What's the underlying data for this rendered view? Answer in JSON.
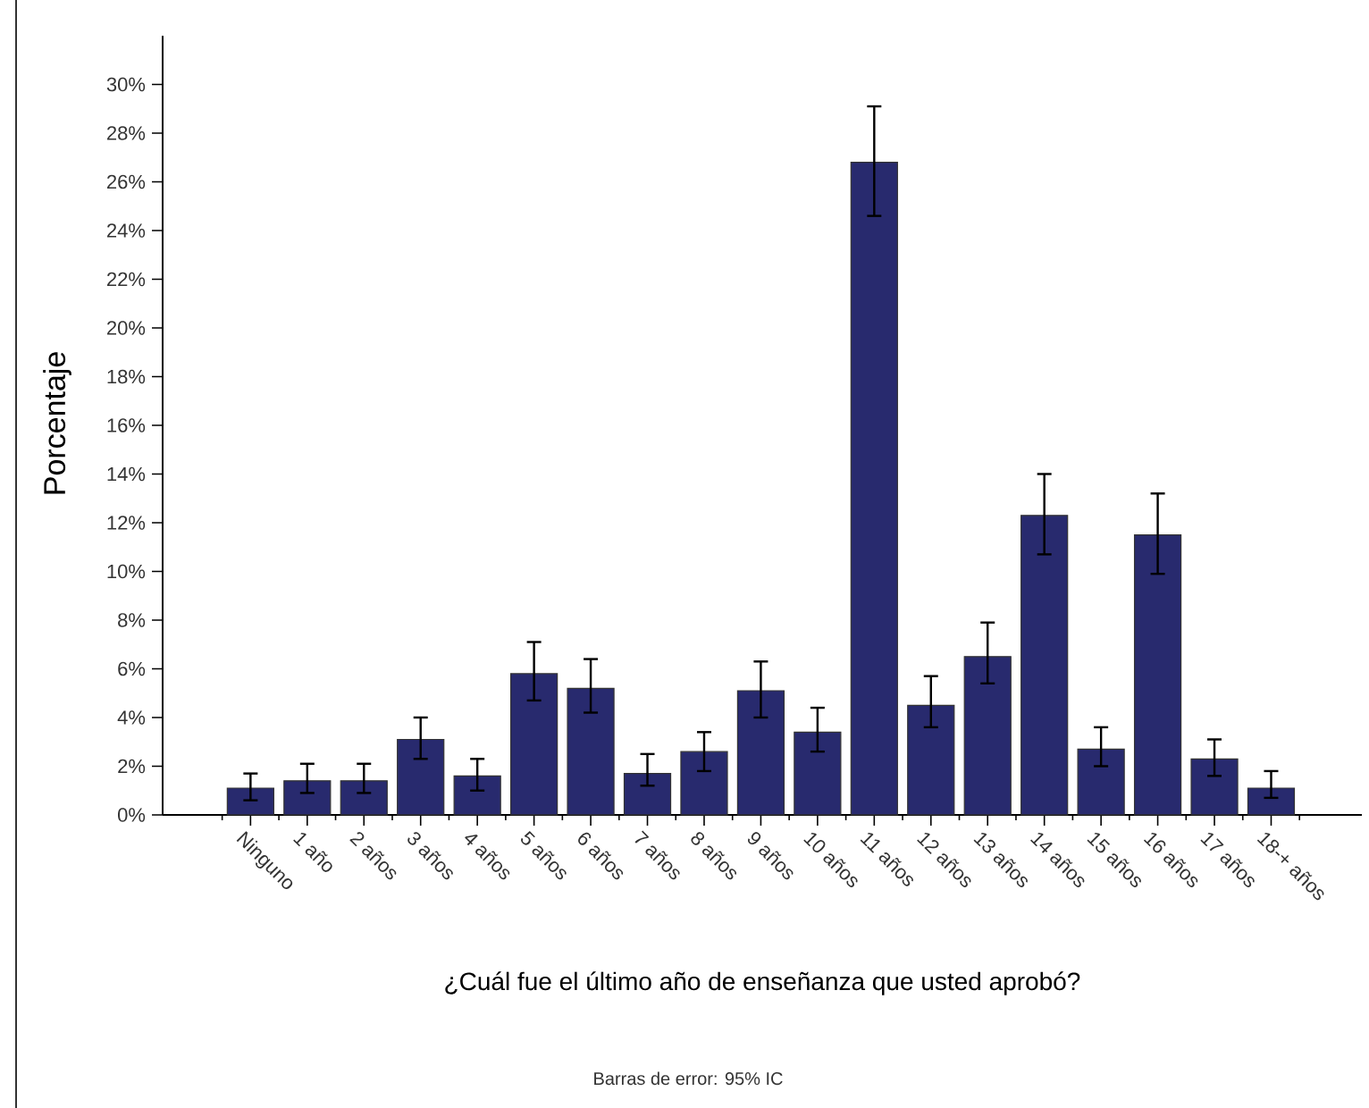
{
  "chart_data": {
    "type": "bar",
    "xlabel": "¿Cuál fue el último año de enseñanza que usted aprobó?",
    "ylabel": "Porcentaje",
    "annotations": [
      "Barras de error: 95% IC"
    ],
    "categories": [
      "Ninguno",
      "1 año",
      "2 años",
      "3 años",
      "4 años",
      "5 años",
      "6 años",
      "7 años",
      "8 años",
      "9 años",
      "10 años",
      "11 años",
      "12 años",
      "13 años",
      "14 años",
      "15 años",
      "16 años",
      "17 años",
      "18-+ años"
    ],
    "values": [
      1.1,
      1.4,
      1.4,
      3.1,
      1.6,
      5.8,
      5.2,
      1.7,
      2.6,
      5.1,
      3.4,
      26.8,
      4.5,
      6.5,
      12.3,
      2.7,
      11.5,
      2.3,
      1.1
    ],
    "errors": [
      [
        0.6,
        1.7
      ],
      [
        0.9,
        2.1
      ],
      [
        0.9,
        2.1
      ],
      [
        2.3,
        4.0
      ],
      [
        1.0,
        2.3
      ],
      [
        4.7,
        7.1
      ],
      [
        4.2,
        6.4
      ],
      [
        1.2,
        2.5
      ],
      [
        1.8,
        3.4
      ],
      [
        4.0,
        6.3
      ],
      [
        2.6,
        4.4
      ],
      [
        24.6,
        29.1
      ],
      [
        3.6,
        5.7
      ],
      [
        5.4,
        7.9
      ],
      [
        10.7,
        14.0
      ],
      [
        2.0,
        3.6
      ],
      [
        9.9,
        13.2
      ],
      [
        1.6,
        3.1
      ],
      [
        0.7,
        1.8
      ]
    ],
    "color": "#282a6e",
    "ylim": [
      0,
      32
    ],
    "yticks": [
      {
        "value": 0,
        "label": "0%"
      },
      {
        "value": 2,
        "label": "2%"
      },
      {
        "value": 4,
        "label": "4%"
      },
      {
        "value": 6,
        "label": "6%"
      },
      {
        "value": 8,
        "label": "8%"
      },
      {
        "value": 10,
        "label": "10%"
      },
      {
        "value": 12,
        "label": "12%"
      },
      {
        "value": 14,
        "label": "14%"
      },
      {
        "value": 16,
        "label": "16%"
      },
      {
        "value": 18,
        "label": "18%"
      },
      {
        "value": 20,
        "label": "20%"
      },
      {
        "value": 22,
        "label": "22%"
      },
      {
        "value": 24,
        "label": "24%"
      },
      {
        "value": 26,
        "label": "26%"
      },
      {
        "value": 28,
        "label": "28%"
      },
      {
        "value": 30,
        "label": "30%"
      }
    ],
    "grid": false
  }
}
